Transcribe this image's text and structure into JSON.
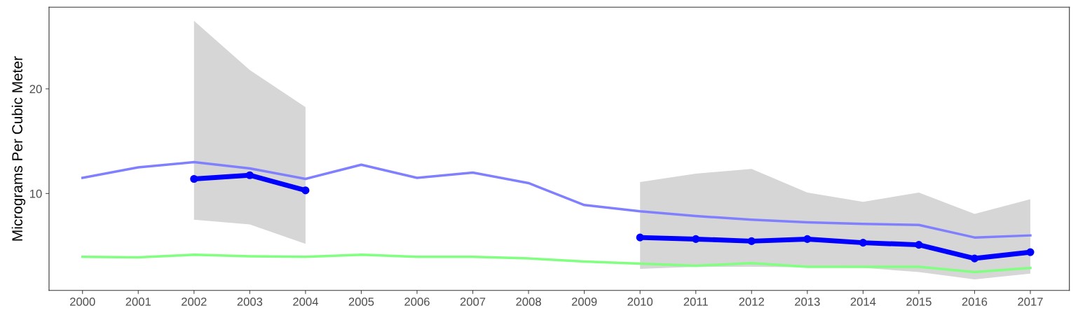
{
  "chart_data": {
    "type": "line",
    "ylabel": "Micrograms Per Cubic Meter",
    "categories": [
      "2000",
      "2001",
      "2002",
      "2003",
      "2004",
      "2005",
      "2006",
      "2007",
      "2008",
      "2009",
      "2010",
      "2011",
      "2012",
      "2013",
      "2014",
      "2015",
      "2016",
      "2017"
    ],
    "ylim": [
      0.74,
      27.8
    ],
    "yticks": [
      10,
      20
    ],
    "grid": false,
    "series": [
      {
        "color": "#8080ff",
        "marker": "none",
        "values": [
          11.5,
          12.5,
          13.0,
          12.4,
          11.4,
          12.75,
          11.5,
          12.0,
          11.0,
          8.9,
          8.3,
          7.85,
          7.5,
          7.25,
          7.1,
          7.0,
          5.8,
          6.0
        ]
      },
      {
        "color": "#80ff80",
        "marker": "none",
        "values": [
          3.95,
          3.9,
          4.15,
          4.0,
          3.95,
          4.15,
          3.95,
          3.95,
          3.8,
          3.5,
          3.3,
          3.1,
          3.35,
          3.0,
          3.0,
          3.0,
          2.5,
          2.9
        ]
      },
      {
        "color": "#0000ff",
        "marker": "circle",
        "values": [
          null,
          null,
          11.4,
          11.75,
          10.3,
          null,
          null,
          null,
          null,
          null,
          5.8,
          5.65,
          5.45,
          5.65,
          5.3,
          5.1,
          3.8,
          4.4
        ],
        "lower": [
          null,
          null,
          7.5,
          7.05,
          5.2,
          null,
          null,
          null,
          null,
          null,
          2.8,
          3.0,
          3.0,
          2.95,
          2.9,
          2.5,
          1.8,
          2.35
        ],
        "upper": [
          null,
          null,
          26.5,
          21.8,
          18.25,
          null,
          null,
          null,
          null,
          null,
          11.1,
          11.9,
          12.35,
          10.1,
          9.2,
          10.1,
          8.05,
          9.45
        ]
      }
    ]
  }
}
